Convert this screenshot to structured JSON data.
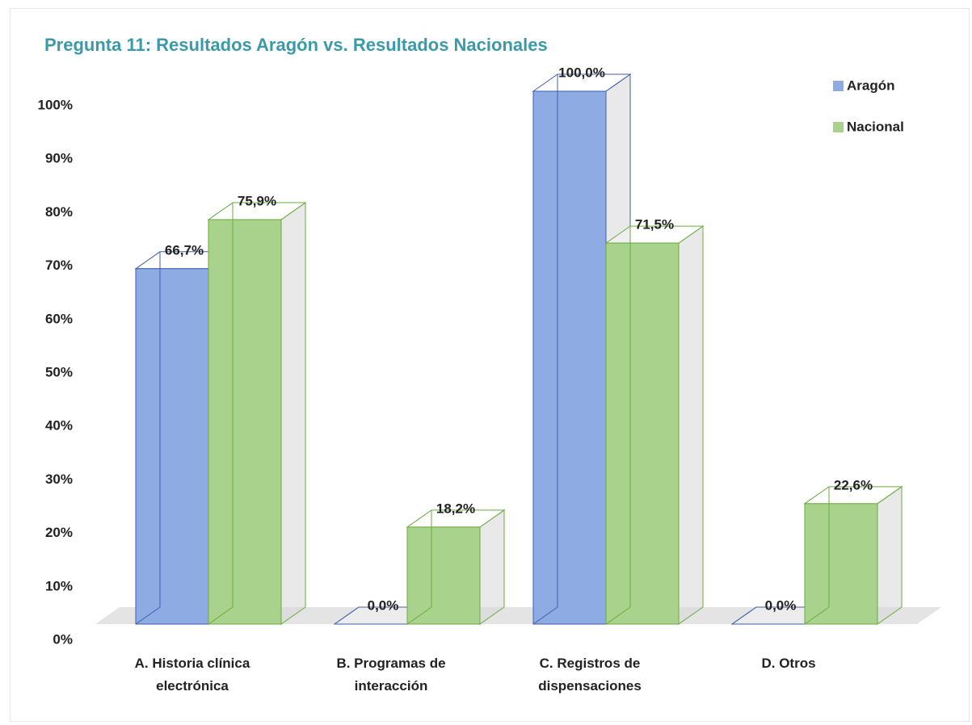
{
  "chart_data": {
    "type": "bar3d",
    "title": "Pregunta 11: Resultados Aragón vs. Resultados Nacionales",
    "categories": [
      "A. Historia clínica electrónica",
      "B. Programas de interacción",
      "C. Registros de dispensaciones",
      "D. Otros"
    ],
    "series": [
      {
        "name": "Aragón",
        "color": "#8eabe3",
        "edge": "#3f5fae",
        "values": [
          66.7,
          0,
          100,
          0
        ],
        "value_labels": [
          "66,7%",
          "0,0%",
          "100,0%",
          "0,0%"
        ]
      },
      {
        "name": "Nacional",
        "color": "#a9d38c",
        "edge": "#6aab3e",
        "values": [
          75.9,
          18.2,
          71.5,
          22.6
        ],
        "value_labels": [
          "75,9%",
          "18,2%",
          "71,5%",
          "22,6%"
        ]
      }
    ],
    "ylim": [
      0,
      100
    ],
    "yticks": [
      {
        "value": 0,
        "label": "0%"
      },
      {
        "value": 10,
        "label": "10%"
      },
      {
        "value": 20,
        "label": "20%"
      },
      {
        "value": 30,
        "label": "30%"
      },
      {
        "value": 40,
        "label": "40%"
      },
      {
        "value": 50,
        "label": "50%"
      },
      {
        "value": 60,
        "label": "60%"
      },
      {
        "value": 70,
        "label": "70%"
      },
      {
        "value": 80,
        "label": "80%"
      },
      {
        "value": 90,
        "label": "90%"
      },
      {
        "value": 100,
        "label": "100%"
      }
    ],
    "legend": "top-right"
  }
}
